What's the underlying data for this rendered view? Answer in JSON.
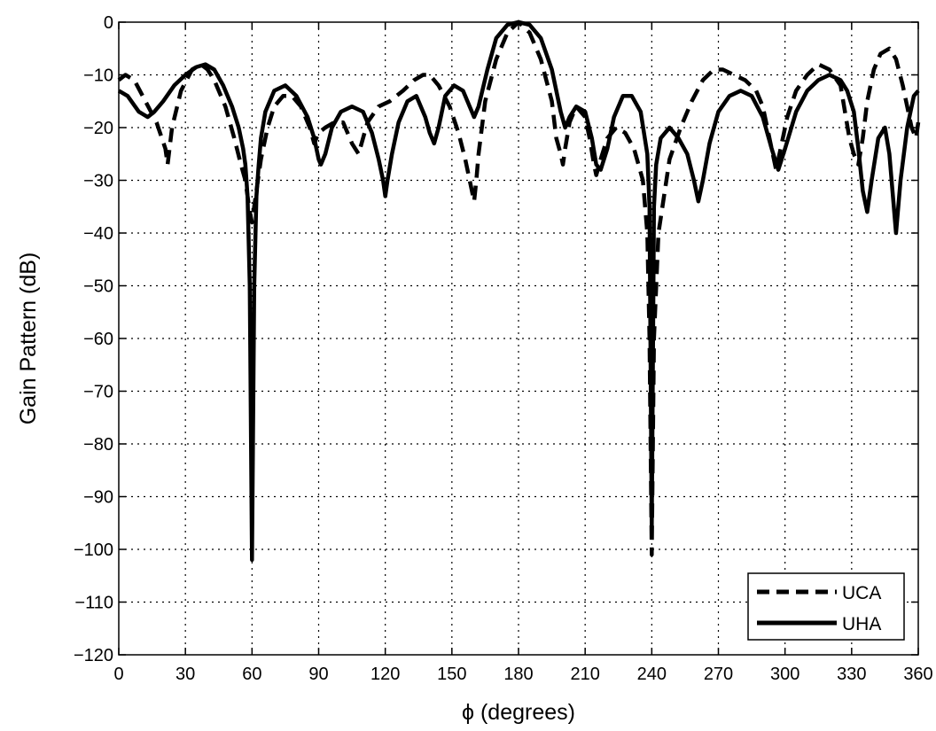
{
  "chart_data": {
    "type": "line",
    "title": "",
    "xlabel": "ϕ (degrees)",
    "ylabel": "Gain Pattern (dB)",
    "xlim": [
      0,
      360
    ],
    "ylim": [
      -120,
      0
    ],
    "xticks": [
      0,
      30,
      60,
      90,
      120,
      150,
      180,
      210,
      240,
      270,
      300,
      330,
      360
    ],
    "yticks": [
      0,
      -10,
      -20,
      -30,
      -40,
      -50,
      -60,
      -70,
      -80,
      -90,
      -100,
      -110,
      -120
    ],
    "grid": true,
    "legend_position": "bottom-right",
    "series": [
      {
        "name": "UCA",
        "style": "dashed",
        "color": "#000000",
        "x": [
          0,
          3,
          7,
          12,
          17,
          21,
          22,
          24,
          28,
          33,
          37,
          40,
          43,
          48,
          52,
          55,
          57,
          58,
          59,
          60,
          61,
          62,
          64,
          67,
          70,
          74,
          78,
          82,
          86,
          88,
          90,
          93,
          97,
          101,
          103,
          105,
          108,
          110,
          112,
          117,
          122,
          128,
          133,
          137,
          140,
          144,
          149,
          153,
          156,
          158,
          160,
          161,
          162,
          165,
          170,
          175,
          180,
          185,
          190,
          195,
          197,
          199,
          200,
          201,
          203,
          206,
          210,
          212,
          214,
          215,
          217,
          220,
          224,
          228,
          232,
          236,
          238,
          239,
          240,
          241,
          243,
          248,
          253,
          258,
          263,
          268,
          272,
          277,
          282,
          287,
          290,
          292,
          294,
          296,
          298,
          301,
          305,
          310,
          315,
          320,
          325,
          327,
          329,
          331,
          333,
          335,
          337,
          340,
          343,
          347,
          350,
          353,
          355,
          357,
          359,
          360
        ],
        "values": [
          -11,
          -10,
          -11,
          -15,
          -19,
          -24,
          -27,
          -20,
          -13,
          -9,
          -8,
          -9,
          -11,
          -16,
          -22,
          -27,
          -30,
          -33,
          -36,
          -38,
          -35,
          -32,
          -26,
          -20,
          -16,
          -14,
          -14,
          -16,
          -20,
          -23,
          -21,
          -20,
          -19,
          -19,
          -21,
          -23,
          -25,
          -22,
          -19,
          -16,
          -15,
          -13,
          -11,
          -10,
          -10,
          -12,
          -16,
          -21,
          -26,
          -30,
          -34,
          -30,
          -25,
          -15,
          -7,
          -2,
          0,
          -2,
          -7,
          -15,
          -22,
          -25,
          -27,
          -24,
          -19,
          -16,
          -18,
          -22,
          -27,
          -29,
          -26,
          -22,
          -20,
          -21,
          -24,
          -30,
          -40,
          -60,
          -101,
          -60,
          -40,
          -26,
          -20,
          -15,
          -11,
          -9,
          -9,
          -10,
          -11,
          -13,
          -16,
          -20,
          -24,
          -28,
          -24,
          -18,
          -13,
          -10,
          -8,
          -9,
          -12,
          -17,
          -22,
          -25,
          -27,
          -22,
          -15,
          -9,
          -6,
          -5,
          -7,
          -12,
          -16,
          -20,
          -22,
          -19
        ]
      },
      {
        "name": "UHA",
        "style": "solid",
        "color": "#000000",
        "x": [
          0,
          4,
          9,
          13,
          16,
          20,
          25,
          30,
          35,
          39,
          43,
          47,
          51,
          54,
          56,
          57,
          58,
          59,
          60,
          61,
          62,
          63,
          64,
          66,
          70,
          75,
          80,
          85,
          88,
          90,
          91,
          93,
          96,
          100,
          105,
          110,
          114,
          117,
          119,
          120,
          121,
          123,
          126,
          130,
          134,
          138,
          140,
          142,
          144,
          147,
          151,
          155,
          158,
          160,
          162,
          166,
          170,
          175,
          180,
          185,
          190,
          195,
          199,
          201,
          203,
          206,
          210,
          213,
          215,
          217,
          220,
          223,
          227,
          231,
          235,
          238,
          239,
          240,
          241,
          242,
          244,
          248,
          252,
          256,
          259,
          261,
          263,
          266,
          270,
          275,
          280,
          285,
          290,
          294,
          297,
          300,
          305,
          310,
          315,
          320,
          325,
          328,
          331,
          333,
          335,
          337,
          339,
          342,
          345,
          347,
          349,
          350,
          352,
          355,
          358,
          360
        ],
        "values": [
          -13,
          -14,
          -17,
          -18,
          -17,
          -15,
          -12,
          -10,
          -8.5,
          -8,
          -9,
          -12,
          -16,
          -20,
          -24,
          -27,
          -33,
          -50,
          -102,
          -50,
          -33,
          -27,
          -22,
          -17,
          -13,
          -12,
          -14,
          -18,
          -22,
          -26,
          -27,
          -25,
          -20,
          -17,
          -16,
          -17,
          -21,
          -26,
          -30,
          -33,
          -30,
          -25,
          -19,
          -15,
          -14,
          -18,
          -21,
          -23,
          -20,
          -14,
          -12,
          -13,
          -16,
          -18,
          -16,
          -9,
          -3,
          -0.5,
          0,
          -0.5,
          -3,
          -9,
          -17,
          -20,
          -18,
          -16,
          -17,
          -22,
          -27,
          -28,
          -24,
          -18,
          -14,
          -14,
          -17,
          -25,
          -35,
          -96,
          -35,
          -27,
          -22,
          -20,
          -22,
          -25,
          -30,
          -34,
          -30,
          -23,
          -17,
          -14,
          -13,
          -14,
          -18,
          -24,
          -28,
          -24,
          -17,
          -13,
          -11,
          -10,
          -11,
          -13,
          -17,
          -24,
          -32,
          -36,
          -30,
          -22,
          -20,
          -25,
          -35,
          -40,
          -30,
          -20,
          -14,
          -13
        ]
      }
    ]
  }
}
